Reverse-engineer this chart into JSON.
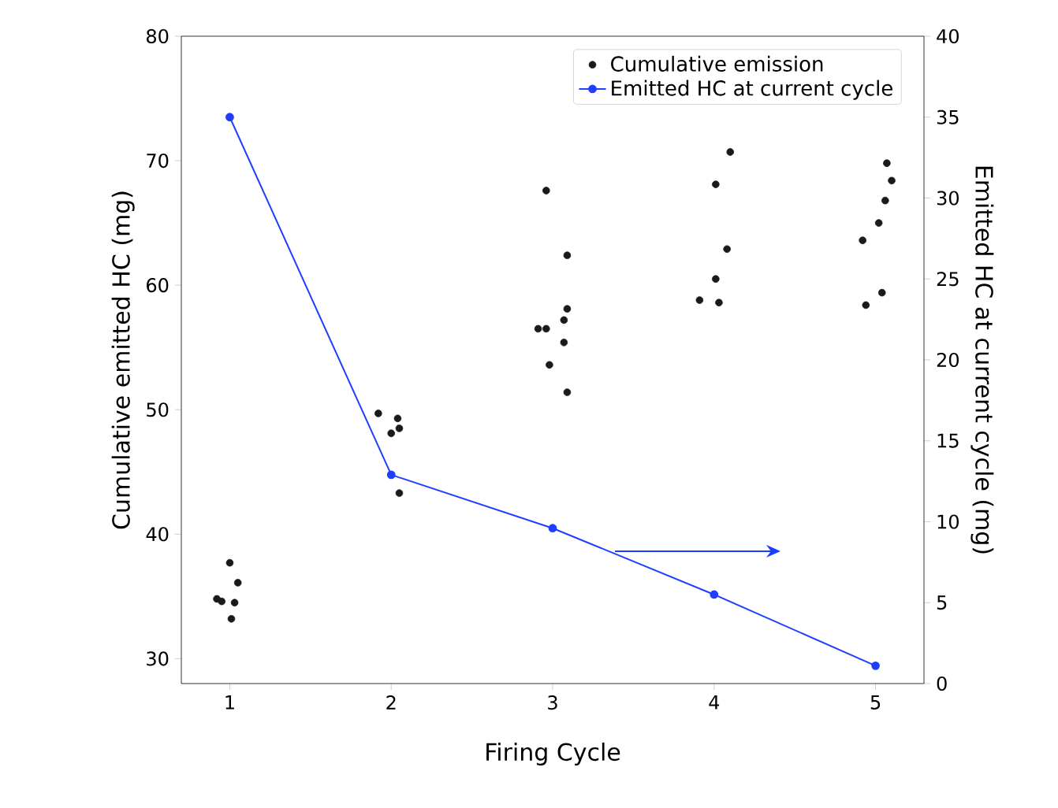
{
  "chart_data": {
    "type": "scatter",
    "xlabel": "Firing Cycle",
    "ylabel": "Cumulative emitted HC (mg)",
    "y2label": "Emitted HC at current cycle (mg)",
    "xlim": [
      0.7,
      5.3
    ],
    "xticks": [
      1,
      2,
      3,
      4,
      5
    ],
    "ylim": [
      28,
      80
    ],
    "yticks": [
      30,
      40,
      50,
      60,
      70,
      80
    ],
    "y2lim": [
      0,
      40
    ],
    "y2ticks": [
      0,
      5,
      10,
      15,
      20,
      25,
      30,
      35,
      40
    ],
    "grid": false,
    "legend": "top right",
    "marker": "circle",
    "series": [
      {
        "name": "Cumulative emission",
        "color": "#1a1a1a",
        "x": [
          0.92,
          0.95,
          1.0,
          1.03,
          1.05,
          1.01,
          1.92,
          2.0,
          2.04,
          2.05,
          2.05,
          2.91,
          2.96,
          2.96,
          2.98,
          3.09,
          3.09,
          3.07,
          3.07,
          3.09,
          3.91,
          4.01,
          4.1,
          4.08,
          4.01,
          4.03,
          5.07,
          5.1,
          5.06,
          5.02,
          4.92,
          5.04,
          4.94
        ],
        "values": [
          34.8,
          34.6,
          37.7,
          34.5,
          36.1,
          33.2,
          49.7,
          48.1,
          49.3,
          48.5,
          43.3,
          56.5,
          56.5,
          67.6,
          53.6,
          62.4,
          58.1,
          57.2,
          55.4,
          51.4,
          58.8,
          68.1,
          70.7,
          62.9,
          60.5,
          58.6,
          69.8,
          68.4,
          66.8,
          65.0,
          63.6,
          59.4,
          58.4
        ]
      },
      {
        "name": "Emitted HC at current cycle",
        "type": "line",
        "axis": "y2",
        "color": "#1f3fff",
        "line_style": "solid",
        "x": [
          1,
          2,
          3,
          4,
          5
        ],
        "values": [
          35.0,
          12.9,
          9.6,
          5.5,
          1.1
        ]
      }
    ]
  }
}
